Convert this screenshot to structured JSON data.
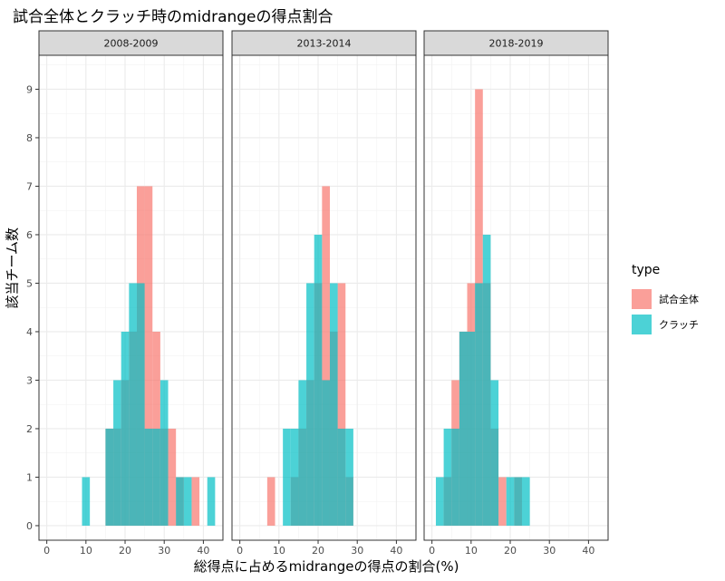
{
  "title": "試合全体とクラッチ時のmidrangeの得点割合",
  "chart_data": {
    "type": "histogram",
    "title": "試合全体とクラッチ時のmidrangeの得点割合",
    "xlabel": "総得点に占めるmidrangeの得点の割合(%)",
    "ylabel": "該当チーム数",
    "xlim": [
      -2,
      45
    ],
    "ylim": [
      -0.3,
      9.7
    ],
    "x_ticks": [
      0,
      10,
      20,
      30,
      40
    ],
    "y_ticks": [
      0,
      1,
      2,
      3,
      4,
      5,
      6,
      7,
      8,
      9
    ],
    "bin_width": 2,
    "grid": true,
    "legend": {
      "title": "type",
      "position": "right",
      "items": [
        {
          "label": "試合全体",
          "color": "#F8766D"
        },
        {
          "label": "クラッチ",
          "color": "#00BFC4"
        }
      ]
    },
    "panels": [
      {
        "label": "2008-2009",
        "series": [
          {
            "name": "試合全体",
            "bins": [
              {
                "x": 16,
                "count": 2
              },
              {
                "x": 18,
                "count": 2
              },
              {
                "x": 20,
                "count": 3
              },
              {
                "x": 22,
                "count": 4
              },
              {
                "x": 24,
                "count": 7
              },
              {
                "x": 26,
                "count": 7
              },
              {
                "x": 28,
                "count": 4
              },
              {
                "x": 30,
                "count": 2
              },
              {
                "x": 32,
                "count": 2
              },
              {
                "x": 34,
                "count": 1
              },
              {
                "x": 38,
                "count": 1
              }
            ]
          },
          {
            "name": "クラッチ",
            "bins": [
              {
                "x": 10,
                "count": 1
              },
              {
                "x": 16,
                "count": 2
              },
              {
                "x": 18,
                "count": 3
              },
              {
                "x": 20,
                "count": 4
              },
              {
                "x": 22,
                "count": 5
              },
              {
                "x": 24,
                "count": 5
              },
              {
                "x": 26,
                "count": 2
              },
              {
                "x": 28,
                "count": 2
              },
              {
                "x": 30,
                "count": 3
              },
              {
                "x": 34,
                "count": 1
              },
              {
                "x": 36,
                "count": 1
              },
              {
                "x": 42,
                "count": 1
              }
            ]
          }
        ]
      },
      {
        "label": "2013-2014",
        "series": [
          {
            "name": "試合全体",
            "bins": [
              {
                "x": 8,
                "count": 1
              },
              {
                "x": 14,
                "count": 1
              },
              {
                "x": 16,
                "count": 2
              },
              {
                "x": 18,
                "count": 3
              },
              {
                "x": 20,
                "count": 5
              },
              {
                "x": 22,
                "count": 7
              },
              {
                "x": 24,
                "count": 4
              },
              {
                "x": 26,
                "count": 5
              },
              {
                "x": 28,
                "count": 1
              }
            ]
          },
          {
            "name": "クラッチ",
            "bins": [
              {
                "x": 12,
                "count": 2
              },
              {
                "x": 14,
                "count": 2
              },
              {
                "x": 16,
                "count": 3
              },
              {
                "x": 18,
                "count": 5
              },
              {
                "x": 20,
                "count": 6
              },
              {
                "x": 22,
                "count": 3
              },
              {
                "x": 24,
                "count": 5
              },
              {
                "x": 26,
                "count": 2
              },
              {
                "x": 28,
                "count": 2
              }
            ]
          }
        ]
      },
      {
        "label": "2018-2019",
        "series": [
          {
            "name": "試合全体",
            "bins": [
              {
                "x": 4,
                "count": 1
              },
              {
                "x": 6,
                "count": 3
              },
              {
                "x": 8,
                "count": 4
              },
              {
                "x": 10,
                "count": 5
              },
              {
                "x": 12,
                "count": 9
              },
              {
                "x": 14,
                "count": 5
              },
              {
                "x": 16,
                "count": 2
              },
              {
                "x": 18,
                "count": 1
              },
              {
                "x": 22,
                "count": 1
              }
            ]
          },
          {
            "name": "クラッチ",
            "bins": [
              {
                "x": 2,
                "count": 1
              },
              {
                "x": 4,
                "count": 2
              },
              {
                "x": 6,
                "count": 2
              },
              {
                "x": 8,
                "count": 4
              },
              {
                "x": 10,
                "count": 4
              },
              {
                "x": 12,
                "count": 5
              },
              {
                "x": 14,
                "count": 6
              },
              {
                "x": 16,
                "count": 3
              },
              {
                "x": 20,
                "count": 1
              },
              {
                "x": 22,
                "count": 1
              },
              {
                "x": 24,
                "count": 1
              }
            ]
          }
        ]
      }
    ]
  }
}
